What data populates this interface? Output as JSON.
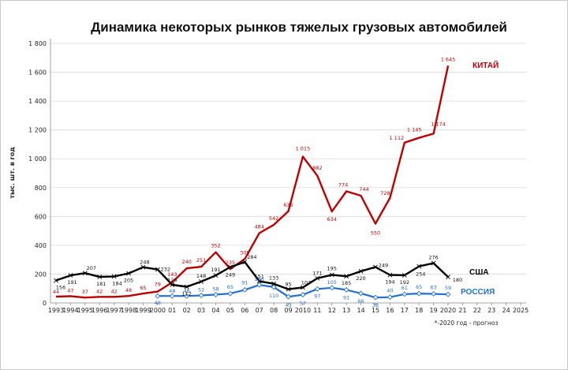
{
  "chart_data": {
    "type": "line",
    "title": "Динамика некоторых рынков тяжелых грузовых автомобилей",
    "ylabel": "тыс. шт. в год",
    "xlabel": "",
    "ylim": [
      0,
      1800
    ],
    "yticks": [
      0,
      200,
      400,
      600,
      800,
      1000,
      1200,
      1400,
      1600,
      1800
    ],
    "ytick_labels": [
      "0",
      "200",
      "400",
      "600",
      "800",
      "1 000",
      "1 200",
      "1 400",
      "1 600",
      "1 800"
    ],
    "x": [
      1993,
      1994,
      1995,
      1996,
      1997,
      1998,
      1999,
      2000,
      2001,
      2002,
      2003,
      2004,
      2005,
      2006,
      2007,
      2008,
      2009,
      2010,
      2011,
      2012,
      2013,
      2014,
      2015,
      2016,
      2017,
      2018,
      2019,
      2020,
      2021,
      2022,
      2023,
      2024,
      2025
    ],
    "x_labels": [
      "1993",
      "1994",
      "1995",
      "1996",
      "1997",
      "1998",
      "1999",
      "2000",
      "01",
      "02",
      "03",
      "04",
      "05",
      "06",
      "07",
      "08",
      "09",
      "2010",
      "11",
      "12",
      "13",
      "14",
      "15",
      "16",
      "17",
      "18",
      "19",
      "2020",
      "21",
      "22",
      "23",
      "24",
      "2025"
    ],
    "grid": true,
    "legend": "none",
    "note": "*-2020 год - прогноз",
    "series": [
      {
        "name": "КИТАЙ",
        "color": "#c00000",
        "marker": "none",
        "x": [
          1993,
          1994,
          1995,
          1996,
          1997,
          1998,
          1999,
          2000,
          2001,
          2002,
          2003,
          2004,
          2005,
          2006,
          2007,
          2008,
          2009,
          2010,
          2011,
          2012,
          2013,
          2014,
          2015,
          2016,
          2017,
          2018,
          2019,
          2020
        ],
        "values": [
          44,
          47,
          37,
          42,
          42,
          48,
          65,
          79,
          143,
          240,
          251,
          352,
          235,
          305,
          484,
          542,
          636,
          1015,
          882,
          634,
          774,
          744,
          550,
          728,
          1112,
          1145,
          1174,
          1645
        ],
        "labels": [
          "44",
          "47",
          "37",
          "42",
          "42",
          "48",
          "65",
          "79",
          "143",
          "240",
          "251",
          "352",
          "235",
          "305",
          "484",
          "542",
          "636",
          "1 015",
          "882",
          "634",
          "774",
          "744",
          "550",
          "728",
          "1 112",
          "1 145",
          "1 174",
          "1 645"
        ]
      },
      {
        "name": "США",
        "color": "#000000",
        "marker": "x",
        "x": [
          1993,
          1994,
          1995,
          1996,
          1997,
          1998,
          1999,
          2000,
          2001,
          2002,
          2003,
          2004,
          2005,
          2006,
          2007,
          2008,
          2009,
          2010,
          2011,
          2012,
          2013,
          2014,
          2015,
          2016,
          2017,
          2018,
          2019,
          2020
        ],
        "values": [
          156,
          191,
          207,
          181,
          184,
          205,
          248,
          232,
          126,
          112,
          148,
          191,
          249,
          284,
          151,
          133,
          95,
          107,
          171,
          195,
          185,
          220,
          249,
          194,
          192,
          254,
          276,
          180
        ],
        "labels": [
          "156",
          "191",
          "207",
          "181",
          "184",
          "205",
          "248",
          "232",
          "126",
          "112",
          "148",
          "191",
          "249",
          "284",
          "151",
          "133",
          "95",
          "107",
          "171",
          "195",
          "185",
          "220",
          "249",
          "194",
          "192",
          "254",
          "276",
          "180"
        ]
      },
      {
        "name": "РОССИЯ",
        "color": "#1f6fd6",
        "marker": "diamond",
        "x": [
          2000,
          2001,
          2002,
          2003,
          2004,
          2005,
          2006,
          2007,
          2008,
          2009,
          2010,
          2011,
          2012,
          2013,
          2014,
          2015,
          2016,
          2017,
          2018,
          2019,
          2020
        ],
        "values": [
          48,
          48,
          48,
          52,
          58,
          65,
          91,
          125,
          110,
          43,
          57,
          97,
          105,
          91,
          66,
          38,
          40,
          61,
          65,
          63,
          59
        ],
        "labels": [
          "48",
          "48",
          "48",
          "52",
          "58",
          "65",
          "91",
          "125",
          "110",
          "43",
          "57",
          "97",
          "105",
          "91",
          "66",
          "38",
          "40",
          "61",
          "65",
          "63",
          "59"
        ]
      }
    ]
  }
}
